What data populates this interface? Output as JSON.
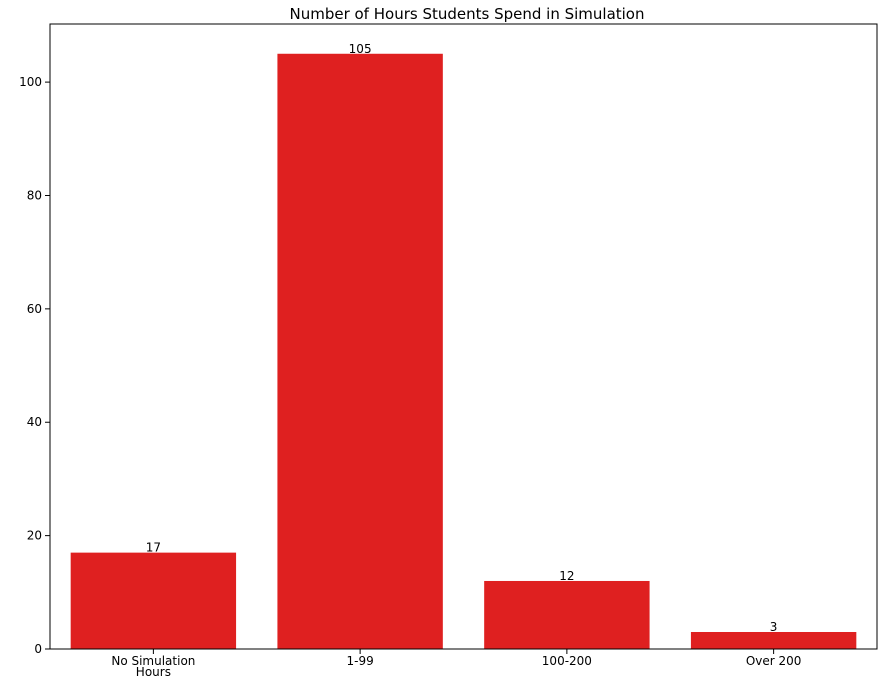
{
  "chart_data": {
    "type": "bar",
    "title": "Number of Hours Students Spend in Simulation",
    "xlabel": "",
    "ylabel": "",
    "categories": [
      "No Simulation\nHours",
      "1-99",
      "100-200",
      "Over 200"
    ],
    "values": [
      17,
      105,
      12,
      3
    ],
    "data_labels": [
      "17",
      "105",
      "12",
      "3"
    ],
    "y_ticks": [
      0,
      20,
      40,
      60,
      80,
      100
    ],
    "ylim": [
      0,
      110.25
    ],
    "grid": false,
    "legend": "none",
    "bar_color": "#df2020"
  }
}
